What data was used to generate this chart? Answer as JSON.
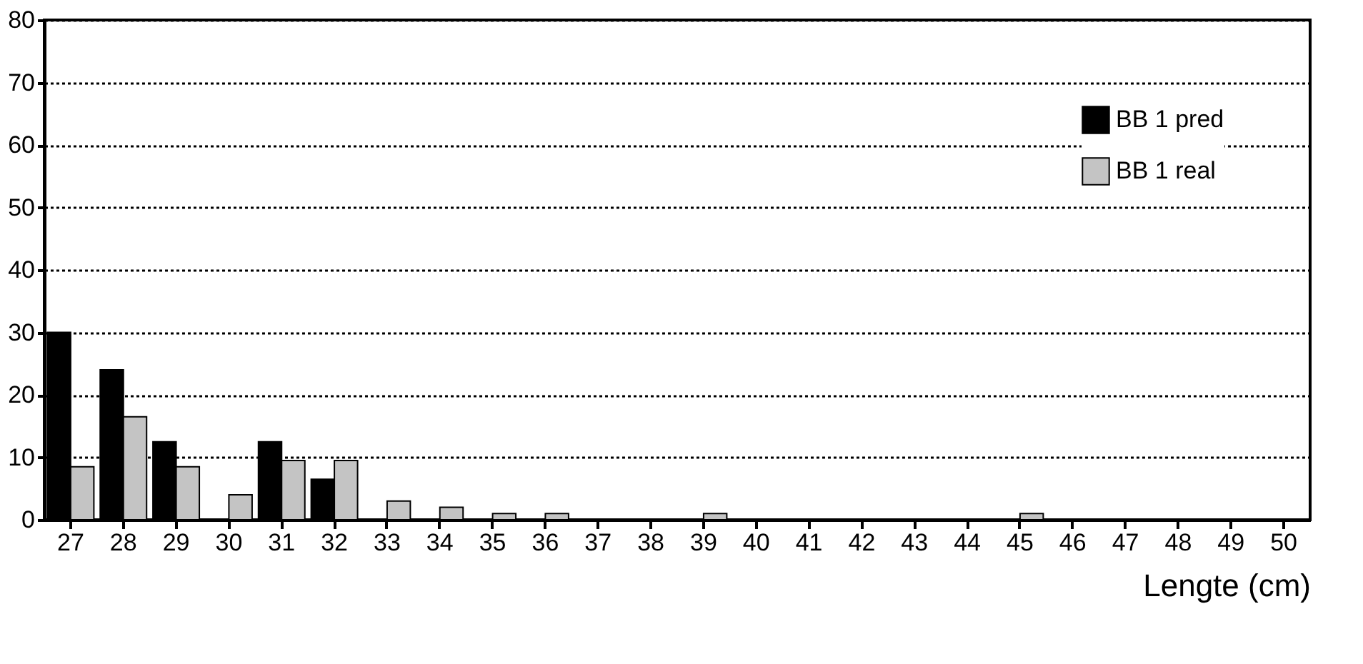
{
  "chart_data": {
    "type": "bar",
    "xlabel": "Lengte  (cm)",
    "categories": [
      "27",
      "28",
      "29",
      "30",
      "31",
      "32",
      "33",
      "34",
      "35",
      "36",
      "37",
      "38",
      "39",
      "40",
      "41",
      "42",
      "43",
      "44",
      "45",
      "46",
      "47",
      "48",
      "49",
      "50"
    ],
    "series": [
      {
        "name": "BB 1 pred",
        "color": "#000000",
        "values": [
          30,
          24,
          12.5,
          0,
          12.5,
          6.5,
          0,
          0,
          0,
          0,
          0,
          0,
          0,
          0,
          0,
          0,
          0,
          0,
          0,
          0,
          0,
          0,
          0,
          0
        ]
      },
      {
        "name": "BB 1 real",
        "color": "#c4c4c4",
        "values": [
          8.5,
          16.5,
          8.5,
          4,
          9.5,
          9.5,
          3,
          2,
          1,
          1,
          0,
          0,
          1,
          0,
          0,
          0,
          0,
          0,
          1,
          0,
          0,
          0,
          0,
          0
        ]
      }
    ],
    "ylim": [
      0,
      80
    ],
    "yticks": [
      0,
      10,
      20,
      30,
      40,
      50,
      60,
      70,
      80
    ],
    "grid": "y",
    "legend": "top right"
  }
}
